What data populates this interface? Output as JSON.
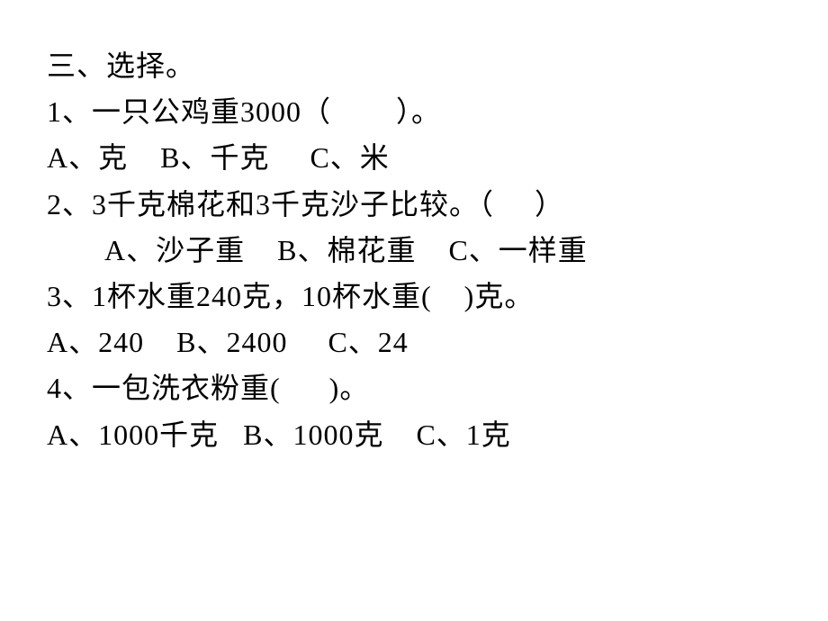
{
  "section_header": "三、选择。",
  "questions": [
    {
      "number": "1、",
      "text": "一只公鸡重3000（        ）。",
      "options": "A、克    B、千克     C、米"
    },
    {
      "number": "2、",
      "text": "3千克棉花和3千克沙子比较。（     ）",
      "options": "A、沙子重    B、棉花重    C、一样重",
      "options_indent": true
    },
    {
      "number": "3、",
      "text": "1杯水重240克，10杯水重(    )克。",
      "options": "A、240    B、2400     C、24"
    },
    {
      "number": "4、",
      "text": "一包洗衣粉重(      )。",
      "options": "A、1000千克   B、1000克    C、1克"
    }
  ],
  "styling": {
    "background_color": "#ffffff",
    "text_color": "#000000",
    "font_size": 32,
    "font_family": "SimSun",
    "line_height": 1.6
  }
}
